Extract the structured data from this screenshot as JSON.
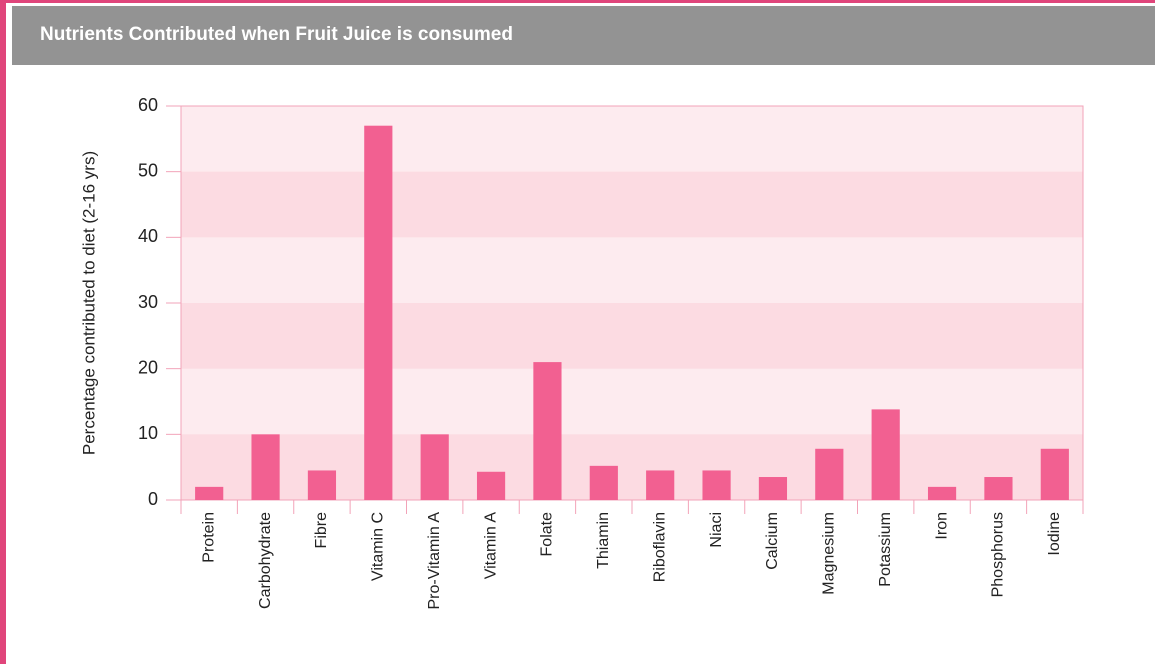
{
  "chart_data": {
    "type": "bar",
    "title": "Nutrients Contributed when Fruit Juice is consumed",
    "ylabel": "Percentage contributed to diet (2-16 yrs)",
    "categories": [
      "Protein",
      "Carbohydrate",
      "Fibre",
      "Vitamin C",
      "Pro-Vitamin A",
      "Vitamin A",
      "Folate",
      "Thiamin",
      "Riboflavin",
      "Niaci",
      "Calcium",
      "Magnesium",
      "Potassium",
      "Iron",
      "Phosphorus",
      "Iodine"
    ],
    "values": [
      2,
      10,
      4.5,
      57,
      10,
      4.3,
      21,
      5.2,
      4.5,
      4.5,
      3.5,
      7.8,
      13.8,
      2,
      3.5,
      7.8
    ],
    "color": "#f26091",
    "ylim": [
      0,
      60
    ],
    "yticks": [
      0,
      10,
      20,
      30,
      40,
      50,
      60
    ],
    "grid": true
  }
}
